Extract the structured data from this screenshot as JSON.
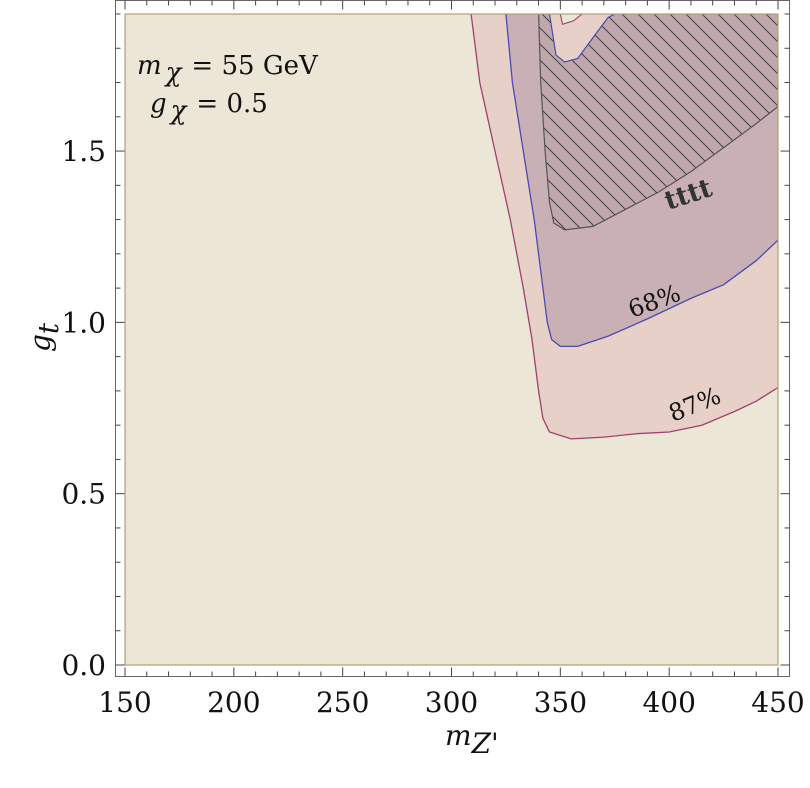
{
  "chart_data": {
    "type": "contour",
    "xlabel": "m_Z'",
    "ylabel": "g_t",
    "xlim": [
      150,
      450
    ],
    "ylim": [
      0.0,
      1.9
    ],
    "x_ticks": [
      "150",
      "200",
      "250",
      "300",
      "350",
      "400",
      "450"
    ],
    "y_ticks": [
      "0.0",
      "0.5",
      "1.0",
      "1.5"
    ],
    "annotation": {
      "line1": {
        "sym": "m",
        "sub": "χ",
        "val": "= 55 GeV"
      },
      "line2": {
        "sym": "g",
        "sub": "χ",
        "val": "= 0.5"
      }
    },
    "colors": {
      "background": "#ebe6d6",
      "region_87": "#e6d0c8",
      "region_68": "#c9b0b5",
      "tttt_hatch": "#bfa7ac",
      "contour_87": "#a04070",
      "contour_68": "#4a4ab0",
      "contour_tttt": "#555555"
    },
    "contours": [
      {
        "name": "87%",
        "label": "87%",
        "points": [
          [
            309,
            1.9
          ],
          [
            313,
            1.7
          ],
          [
            320,
            1.5
          ],
          [
            327,
            1.3
          ],
          [
            333,
            1.1
          ],
          [
            337,
            0.95
          ],
          [
            340,
            0.8
          ],
          [
            342,
            0.72
          ],
          [
            345,
            0.68
          ],
          [
            355,
            0.66
          ],
          [
            370,
            0.665
          ],
          [
            385,
            0.675
          ],
          [
            400,
            0.68
          ],
          [
            415,
            0.7
          ],
          [
            430,
            0.74
          ],
          [
            440,
            0.77
          ],
          [
            450,
            0.81
          ]
        ]
      },
      {
        "name": "68%",
        "label": "68%",
        "points": [
          [
            325,
            1.9
          ],
          [
            328,
            1.7
          ],
          [
            333,
            1.5
          ],
          [
            338,
            1.3
          ],
          [
            342,
            1.1
          ],
          [
            344,
            1.0
          ],
          [
            346,
            0.95
          ],
          [
            350,
            0.93
          ],
          [
            358,
            0.93
          ],
          [
            372,
            0.96
          ],
          [
            390,
            1.01
          ],
          [
            410,
            1.07
          ],
          [
            425,
            1.11
          ],
          [
            440,
            1.18
          ],
          [
            450,
            1.24
          ]
        ]
      },
      {
        "name": "tttt",
        "label": "tttt",
        "points": [
          [
            340,
            1.9
          ],
          [
            341,
            1.7
          ],
          [
            343,
            1.5
          ],
          [
            345,
            1.35
          ],
          [
            347,
            1.29
          ],
          [
            352,
            1.27
          ],
          [
            365,
            1.28
          ],
          [
            380,
            1.33
          ],
          [
            395,
            1.38
          ],
          [
            410,
            1.44
          ],
          [
            425,
            1.51
          ],
          [
            440,
            1.58
          ],
          [
            450,
            1.63
          ]
        ]
      },
      {
        "name": "inner",
        "points": [
          [
            345,
            1.9
          ],
          [
            348,
            1.78
          ],
          [
            352,
            1.76
          ],
          [
            358,
            1.77
          ],
          [
            366,
            1.84
          ],
          [
            372,
            1.89
          ],
          [
            375,
            1.9
          ]
        ]
      },
      {
        "name": "innermost",
        "points": [
          [
            350,
            1.9
          ],
          [
            351,
            1.87
          ],
          [
            356,
            1.88
          ],
          [
            360,
            1.9
          ]
        ]
      }
    ]
  }
}
